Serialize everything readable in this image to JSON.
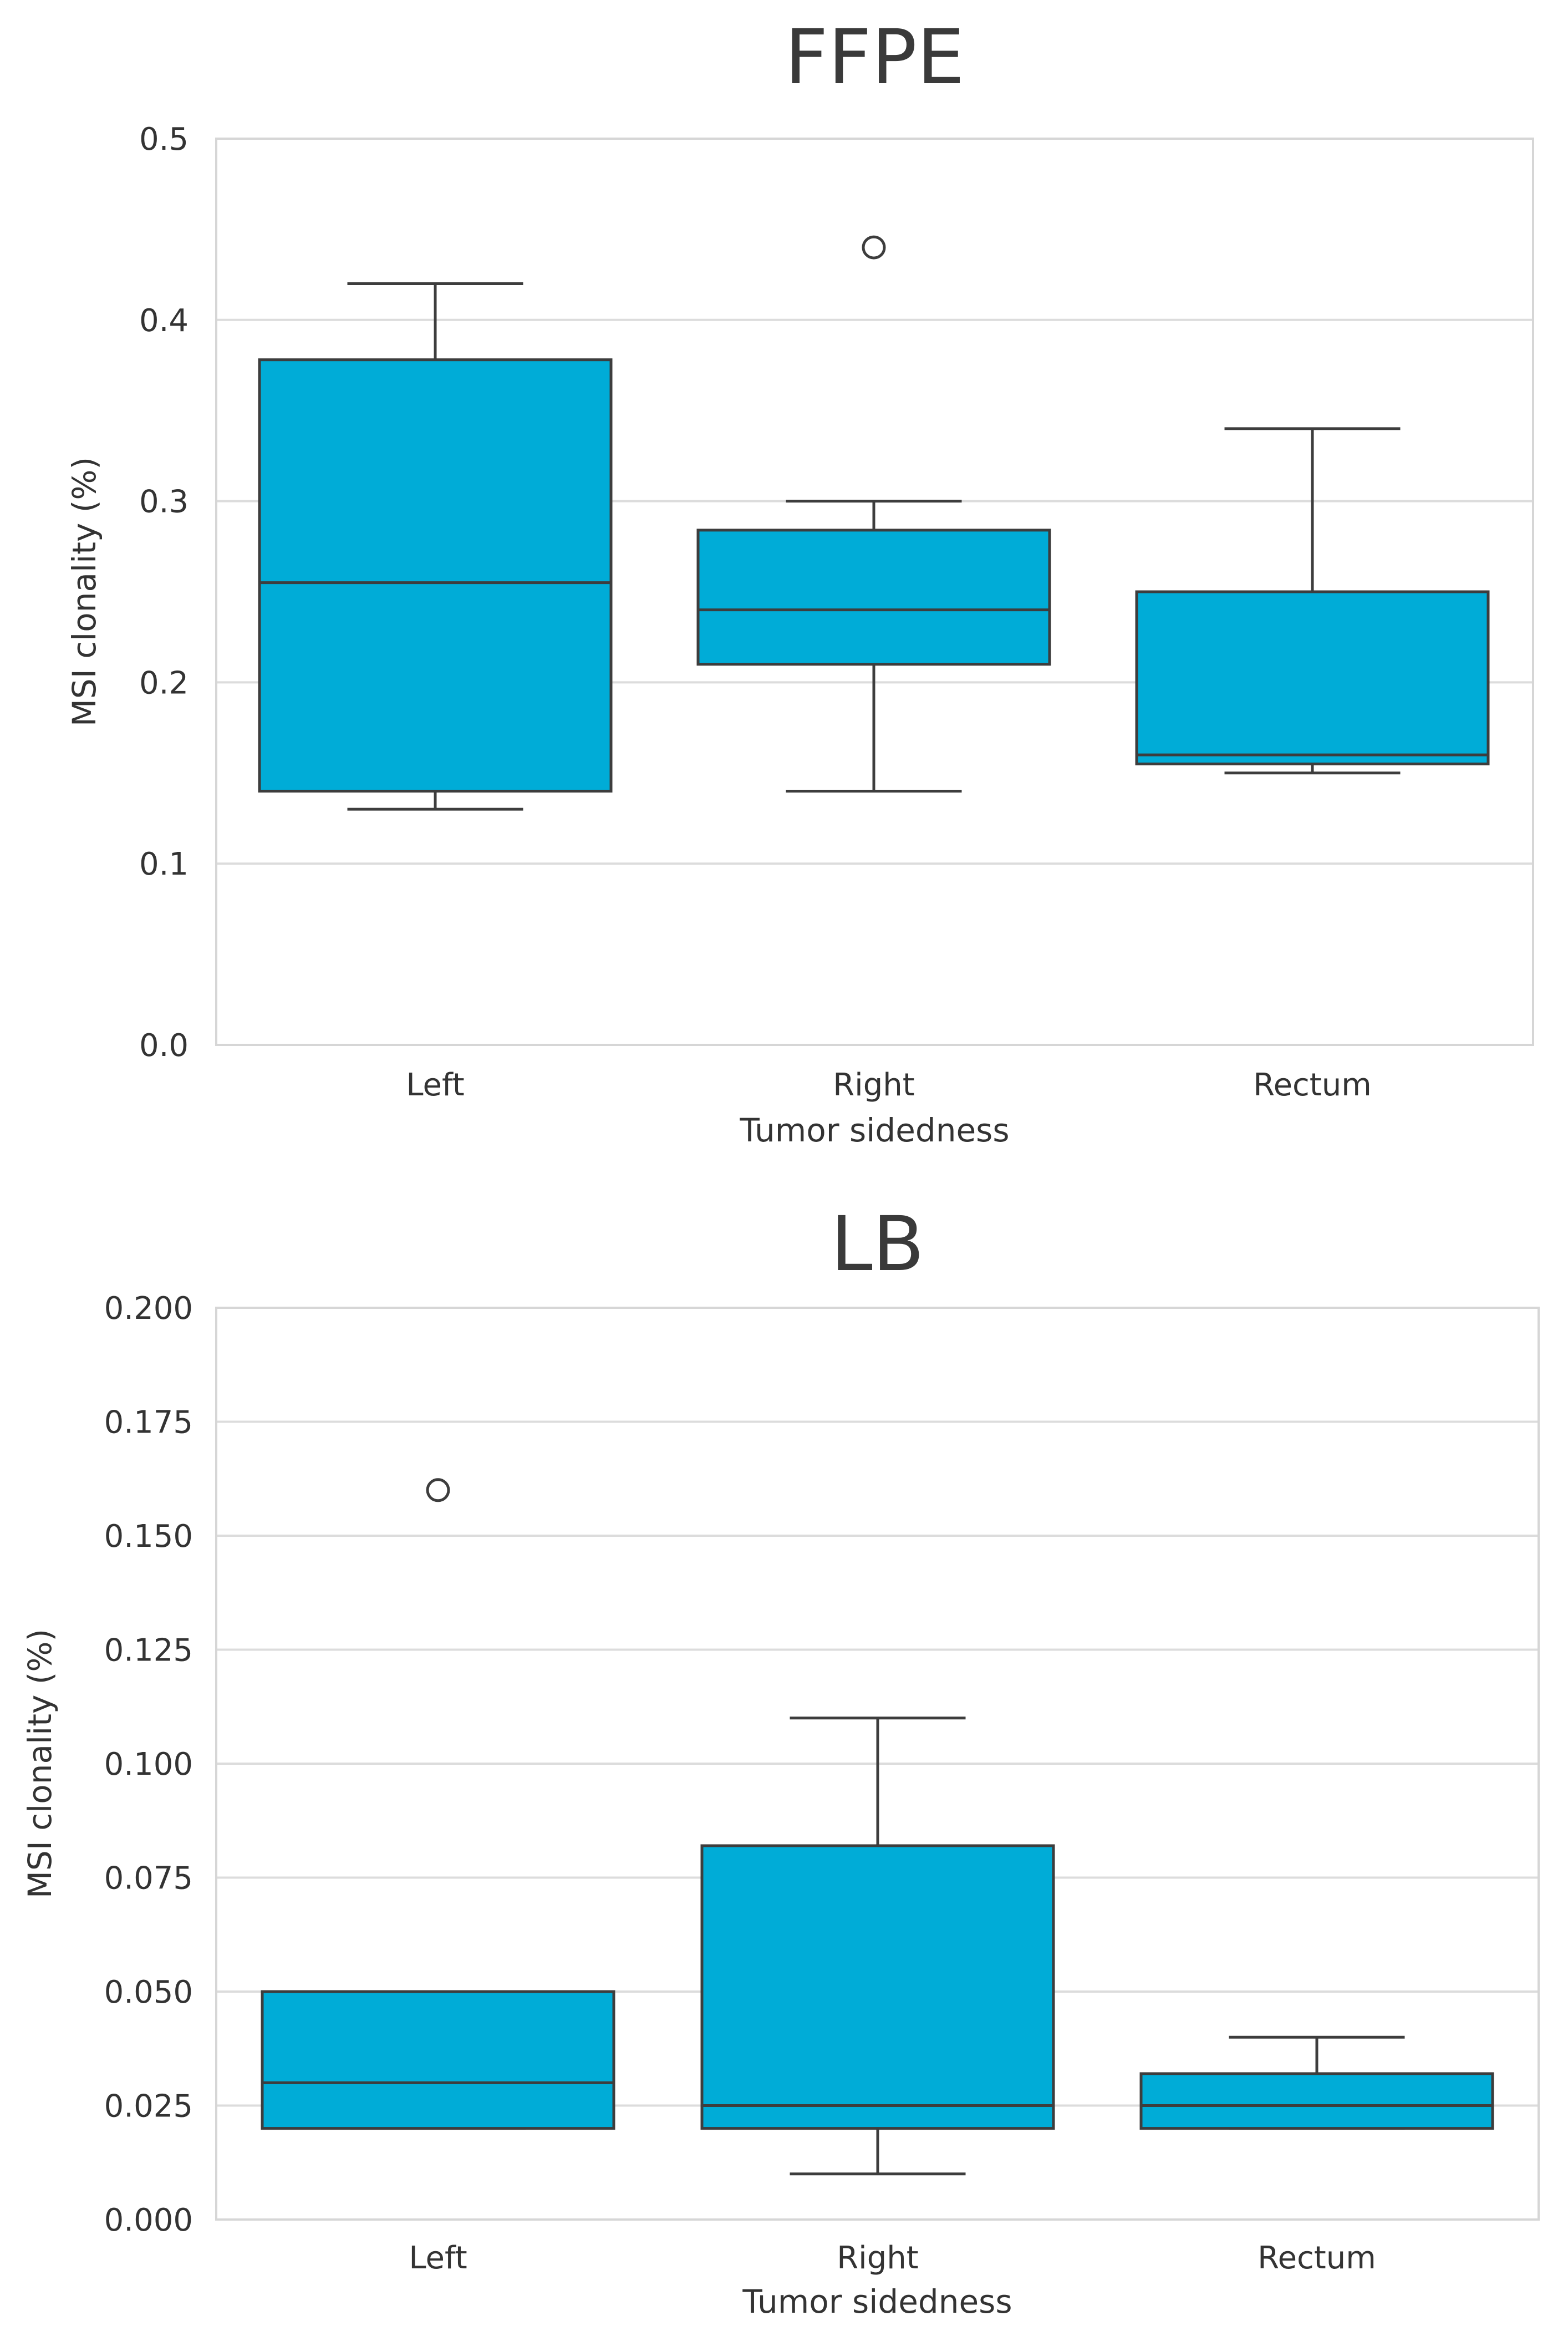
{
  "chart_data": [
    {
      "type": "box",
      "title": "FFPE",
      "xlabel": "Tumor sidedness",
      "ylabel": "MSI clonality (%)",
      "ylim": [
        0.0,
        0.5
      ],
      "yticks": [
        "0.0",
        "0.1",
        "0.2",
        "0.3",
        "0.4",
        "0.5"
      ],
      "grid": true,
      "categories": [
        "Left",
        "Right",
        "Rectum"
      ],
      "boxes": [
        {
          "category": "Left",
          "whisker_low": 0.13,
          "q1": 0.14,
          "median": 0.255,
          "q3": 0.378,
          "whisker_high": 0.42,
          "outliers": []
        },
        {
          "category": "Right",
          "whisker_low": 0.14,
          "q1": 0.21,
          "median": 0.24,
          "q3": 0.284,
          "whisker_high": 0.3,
          "outliers": [
            0.44
          ]
        },
        {
          "category": "Rectum",
          "whisker_low": 0.15,
          "q1": 0.155,
          "median": 0.16,
          "q3": 0.25,
          "whisker_high": 0.34,
          "outliers": []
        }
      ]
    },
    {
      "type": "box",
      "title": "LB",
      "xlabel": "Tumor sidedness",
      "ylabel": "MSI clonality (%)",
      "ylim": [
        0.0,
        0.2
      ],
      "yticks": [
        "0.000",
        "0.025",
        "0.050",
        "0.075",
        "0.100",
        "0.125",
        "0.150",
        "0.175",
        "0.200"
      ],
      "grid": true,
      "categories": [
        "Left",
        "Right",
        "Rectum"
      ],
      "boxes": [
        {
          "category": "Left",
          "whisker_low": 0.02,
          "q1": 0.02,
          "median": 0.03,
          "q3": 0.05,
          "whisker_high": 0.05,
          "outliers": [
            0.16
          ]
        },
        {
          "category": "Right",
          "whisker_low": 0.01,
          "q1": 0.02,
          "median": 0.025,
          "q3": 0.082,
          "whisker_high": 0.11,
          "outliers": []
        },
        {
          "category": "Rectum",
          "whisker_low": 0.02,
          "q1": 0.02,
          "median": 0.025,
          "q3": 0.032,
          "whisker_high": 0.04,
          "outliers": []
        }
      ]
    }
  ],
  "colors": {
    "box_fill": "#00ACD7",
    "box_edge": "#3d3d3d",
    "grid": "#dcdcdc",
    "frame": "#d6d6d6"
  }
}
